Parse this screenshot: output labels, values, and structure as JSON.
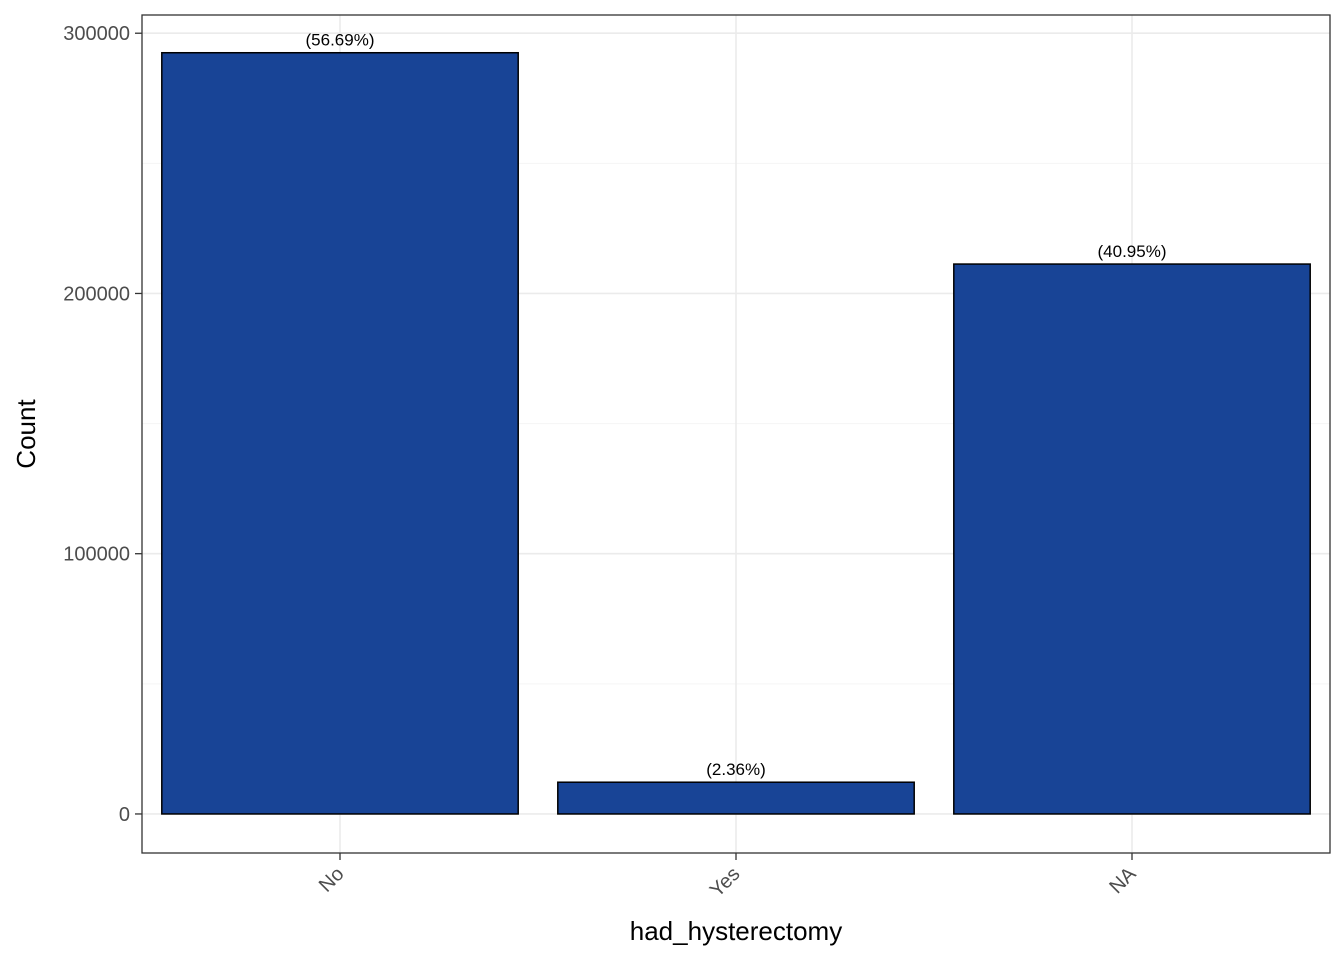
{
  "chart_data": {
    "type": "bar",
    "title": "",
    "xlabel": "had_hysterectomy",
    "ylabel": "Count",
    "categories": [
      "No",
      "Yes",
      "NA"
    ],
    "values": [
      292500,
      12200,
      211300
    ],
    "bar_labels": [
      "(56.69%)",
      "(2.36%)",
      "(40.95%)"
    ],
    "y_ticks": [
      0,
      100000,
      200000,
      300000
    ],
    "y_tick_labels": [
      "0",
      "100000",
      "200000",
      "300000"
    ],
    "ylim": [
      -15000,
      307000
    ],
    "grid": true,
    "x_tick_rotation": "45 degrees",
    "colors": {
      "bar_fill": "#184496",
      "bar_stroke": "#000000",
      "grid_major": "#ebebeb",
      "grid_minor": "#f5f5f5",
      "panel_border": "#333333"
    }
  }
}
